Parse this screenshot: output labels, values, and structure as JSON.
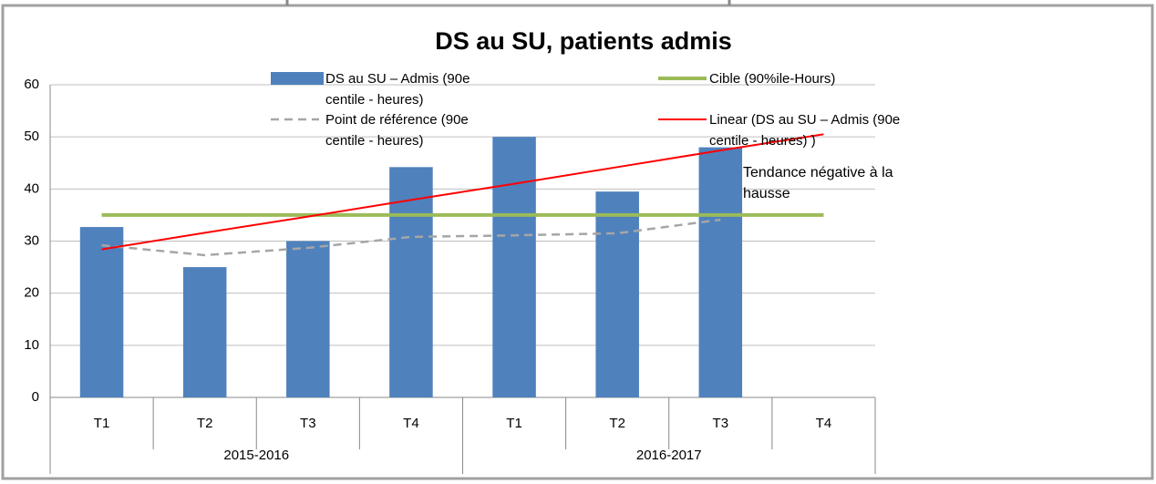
{
  "chart_data": {
    "type": "bar",
    "title": "DS au SU, patients admis",
    "categories": [
      "T1",
      "T2",
      "T3",
      "T4",
      "T1",
      "T2",
      "T3",
      "T4"
    ],
    "category_groups": [
      "2015-2016",
      "2016-2017"
    ],
    "series": [
      {
        "name": "DS au SU – Admis (90e centile - heures)",
        "type": "bar",
        "color": "#4f81bd",
        "values": [
          32.7,
          25,
          30,
          44.2,
          50,
          39.5,
          48,
          null
        ]
      },
      {
        "name": "Point de référence (90e centile - heures)",
        "type": "line",
        "dash": true,
        "color": "#a6a6a6",
        "values": [
          29.2,
          27.3,
          28.7,
          30.8,
          31.1,
          31.5,
          34.1,
          null
        ]
      },
      {
        "name": "Cible (90%ile-Hours)",
        "type": "line",
        "color": "#9bbb59",
        "values": [
          35,
          35,
          35,
          35,
          35,
          35,
          35,
          35
        ]
      },
      {
        "name": "Linear (DS au SU – Admis (90e centile - heures) )",
        "type": "line",
        "color": "#ff0000",
        "values": [
          28.4,
          31.6,
          34.7,
          37.9,
          41.0,
          44.2,
          47.4,
          50.5
        ]
      }
    ],
    "annotation": "Tendance négative à la hausse",
    "ylim": [
      0,
      60
    ],
    "yticks": [
      0,
      10,
      20,
      30,
      40,
      50,
      60
    ],
    "grid": true
  }
}
